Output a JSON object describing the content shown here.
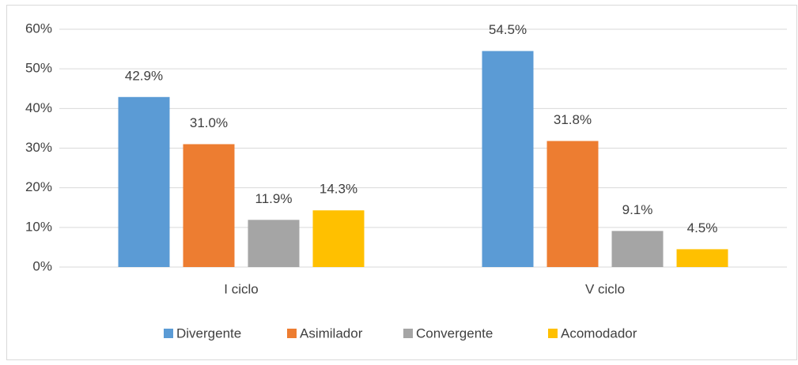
{
  "chart_data": {
    "type": "bar",
    "categories": [
      "I ciclo",
      "V ciclo"
    ],
    "series": [
      {
        "name": "Divergente",
        "color": "#5b9bd5",
        "values": [
          42.9,
          54.5
        ],
        "value_labels": [
          "42.9%",
          "54.5%"
        ]
      },
      {
        "name": "Asimilador",
        "color": "#ed7d31",
        "values": [
          31.0,
          31.8
        ],
        "value_labels": [
          "31.0%",
          "31.8%"
        ]
      },
      {
        "name": "Convergente",
        "color": "#a5a5a5",
        "values": [
          11.9,
          9.1
        ],
        "value_labels": [
          "11.9%",
          "9.1%"
        ]
      },
      {
        "name": "Acomodador",
        "color": "#ffc000",
        "values": [
          14.3,
          4.5
        ],
        "value_labels": [
          "14.3%",
          "4.5%"
        ]
      }
    ],
    "ylim": [
      0,
      60
    ],
    "yticks": [
      {
        "value": 0,
        "label": "0%"
      },
      {
        "value": 10,
        "label": "10%"
      },
      {
        "value": 20,
        "label": "20%"
      },
      {
        "value": 30,
        "label": "30%"
      },
      {
        "value": 40,
        "label": "40%"
      },
      {
        "value": 50,
        "label": "50%"
      },
      {
        "value": 60,
        "label": "60%"
      }
    ],
    "grid": true,
    "legend": "bottom"
  }
}
